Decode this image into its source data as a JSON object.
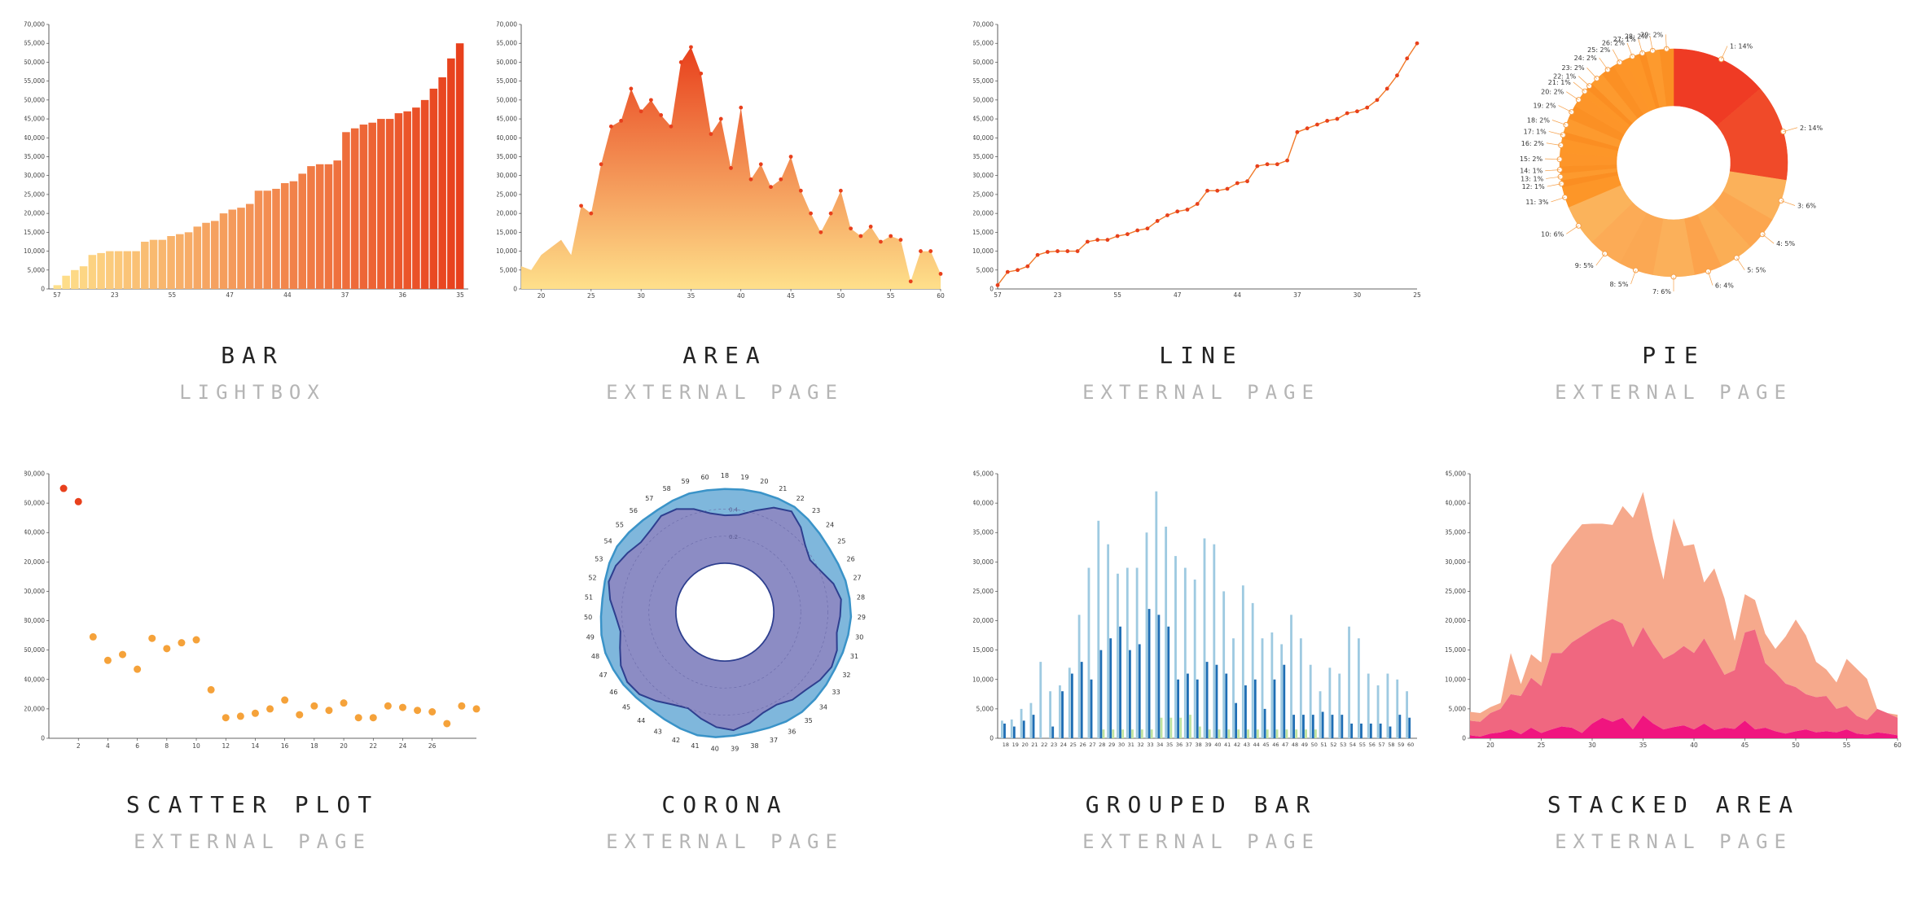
{
  "cards": [
    {
      "title": "BAR",
      "link": "LIGHTBOX"
    },
    {
      "title": "AREA",
      "link": "EXTERNAL PAGE"
    },
    {
      "title": "LINE",
      "link": "EXTERNAL PAGE"
    },
    {
      "title": "PIE",
      "link": "EXTERNAL PAGE"
    },
    {
      "title": "SCATTER PLOT",
      "link": "EXTERNAL PAGE"
    },
    {
      "title": "CORONA",
      "link": "EXTERNAL PAGE"
    },
    {
      "title": "GROUPED BAR",
      "link": "EXTERNAL PAGE"
    },
    {
      "title": "STACKED AREA",
      "link": "EXTERNAL PAGE"
    }
  ],
  "chart_data": [
    {
      "type": "bar",
      "ylim": [
        0,
        70000
      ],
      "yticks": [
        0,
        5000,
        10000,
        15000,
        20000,
        25000,
        30000,
        35000,
        40000,
        45000,
        50000,
        55000,
        60000,
        65000,
        70000
      ],
      "xtick_labels": [
        "57",
        "23",
        "55",
        "47",
        "44",
        "37",
        "36",
        "35"
      ],
      "values": [
        1000,
        3500,
        5000,
        6000,
        9000,
        9500,
        10000,
        10000,
        10000,
        10000,
        12500,
        13000,
        13000,
        14000,
        14500,
        15000,
        16500,
        17500,
        18000,
        20000,
        21000,
        21500,
        22500,
        26000,
        26000,
        26500,
        28000,
        28500,
        30500,
        32500,
        33000,
        33000,
        34000,
        41500,
        42500,
        43500,
        44000,
        45000,
        45000,
        46500,
        47000,
        48000,
        50000,
        53000,
        56000,
        61000,
        65000
      ],
      "colors": [
        "#fee08b",
        "#e8401c"
      ]
    },
    {
      "type": "area",
      "ylim": [
        0,
        70000
      ],
      "yticks": [
        0,
        5000,
        10000,
        15000,
        20000,
        25000,
        30000,
        35000,
        40000,
        45000,
        50000,
        55000,
        60000,
        65000,
        70000
      ],
      "xlim": [
        18,
        60
      ],
      "xticks": [
        20,
        25,
        30,
        35,
        40,
        45,
        50,
        55,
        60
      ],
      "x": [
        18,
        19,
        20,
        21,
        22,
        23,
        24,
        25,
        26,
        27,
        28,
        29,
        30,
        31,
        32,
        33,
        34,
        35,
        36,
        37,
        38,
        39,
        40,
        41,
        42,
        43,
        44,
        45,
        46,
        47,
        48,
        49,
        50,
        51,
        52,
        53,
        54,
        55,
        56,
        57,
        58,
        59,
        60
      ],
      "values": [
        6000,
        5000,
        9000,
        11000,
        13000,
        9000,
        22000,
        20000,
        33000,
        43000,
        44500,
        53000,
        47000,
        50000,
        46000,
        43000,
        60000,
        64000,
        57000,
        41000,
        45000,
        32000,
        48000,
        29000,
        33000,
        27000,
        29000,
        35000,
        26000,
        20000,
        15000,
        20000,
        26000,
        16000,
        14000,
        16500,
        12500,
        14000,
        13000,
        2000,
        10000,
        10000,
        4000
      ],
      "colors": [
        "#fee08b",
        "#e8401c"
      ]
    },
    {
      "type": "line",
      "ylim": [
        0,
        70000
      ],
      "yticks": [
        0,
        5000,
        10000,
        15000,
        20000,
        25000,
        30000,
        35000,
        40000,
        45000,
        50000,
        55000,
        60000,
        65000,
        70000
      ],
      "xtick_labels": [
        "57",
        "23",
        "55",
        "47",
        "44",
        "37",
        "30",
        "25"
      ],
      "values": [
        1000,
        4500,
        5000,
        6000,
        9000,
        9800,
        10000,
        10000,
        10000,
        12500,
        13000,
        13000,
        14000,
        14500,
        15500,
        16000,
        18000,
        19500,
        20500,
        21000,
        22500,
        26000,
        26000,
        26500,
        28000,
        28500,
        32500,
        33000,
        33000,
        34000,
        41500,
        42500,
        43500,
        44500,
        45000,
        46500,
        47000,
        48000,
        50000,
        53000,
        56500,
        61000,
        65000
      ],
      "color": "#e8401c"
    },
    {
      "type": "pie",
      "labels": [
        "1: 14%",
        "2: 14%",
        "3: 6%",
        "4: 5%",
        "5: 5%",
        "6: 4%",
        "7: 6%",
        "8: 5%",
        "9: 5%",
        "10: 6%",
        "11: 3%",
        "12: 1%",
        "13: 1%",
        "14: 1%",
        "15: 2%",
        "16: 2%",
        "17: 1%",
        "18: 2%",
        "19: 2%",
        "20: 2%",
        "21: 1%",
        "22: 1%",
        "23: 2%",
        "24: 2%",
        "25: 2%",
        "26: 2%",
        "27: 1%",
        "28: 2%",
        "29: 2%"
      ],
      "values": [
        14,
        14,
        6,
        5,
        5,
        4,
        6,
        5,
        5,
        6,
        3,
        1,
        1,
        1,
        2,
        2,
        1,
        2,
        2,
        2,
        1,
        1,
        2,
        2,
        2,
        2,
        1,
        2,
        2
      ]
    },
    {
      "type": "scatter",
      "ylim": [
        0,
        180000
      ],
      "yticks": [
        0,
        20000,
        40000,
        60000,
        80000,
        100000,
        120000,
        140000,
        160000,
        180000
      ],
      "yticks_labels": [
        "0",
        "20,000",
        "40,000",
        "60,000",
        "80,000",
        "100,000",
        "120,000",
        "140,000",
        "160,000",
        "180,000"
      ],
      "xlim": [
        0,
        29
      ],
      "xticks": [
        2,
        4,
        6,
        8,
        10,
        12,
        14,
        16,
        18,
        20,
        22,
        24,
        26
      ],
      "x": [
        1,
        2,
        3,
        4,
        5,
        6,
        7,
        8,
        9,
        10,
        11,
        12,
        13,
        14,
        15,
        16,
        17,
        18,
        19,
        20,
        21,
        22,
        23,
        24,
        25,
        26,
        27,
        28,
        29
      ],
      "values": [
        170000,
        161000,
        69000,
        53000,
        57000,
        47000,
        68000,
        61000,
        65000,
        67000,
        33000,
        14000,
        15000,
        17000,
        20000,
        26000,
        16000,
        22000,
        19000,
        24000,
        14000,
        14000,
        22000,
        21000,
        19000,
        18000,
        10000,
        22000,
        20000
      ]
    },
    {
      "type": "radar",
      "axis_labels": [
        "18",
        "19",
        "20",
        "21",
        "22",
        "23",
        "24",
        "25",
        "26",
        "27",
        "28",
        "29",
        "30",
        "31",
        "32",
        "33",
        "34",
        "35",
        "36",
        "37",
        "38",
        "39",
        "40",
        "41",
        "42",
        "43",
        "44",
        "45",
        "46",
        "47",
        "48",
        "49",
        "50",
        "51",
        "52",
        "53",
        "54",
        "55",
        "56",
        "57",
        "58",
        "59",
        "60"
      ],
      "ring_labels": [
        "0.4",
        "0.2"
      ],
      "series": [
        {
          "values": [
            0.62,
            0.64,
            0.74,
            0.86,
            0.93,
            0.84,
            0.72,
            0.66,
            0.72,
            0.82,
            0.88,
            0.86,
            0.84,
            0.9,
            0.92,
            0.88,
            0.82,
            0.8,
            0.74,
            0.76,
            0.84,
            0.9,
            0.86,
            0.78,
            0.7,
            0.74,
            0.82,
            0.9,
            0.92,
            0.88,
            0.8,
            0.74,
            0.78,
            0.86,
            0.92,
            0.9,
            0.84,
            0.78,
            0.8,
            0.86,
            0.84,
            0.76,
            0.66
          ]
        },
        {
          "values": [
            0.96,
            0.97,
            0.98,
            0.99,
            1.0,
            0.98,
            0.96,
            0.95,
            0.96,
            0.98,
            0.99,
            1.0,
            0.99,
            0.98,
            0.97,
            0.98,
            0.99,
            1.0,
            0.99,
            0.97,
            0.96,
            0.97,
            0.99,
            1.0,
            0.98,
            0.96,
            0.95,
            0.96,
            0.98,
            0.99,
            1.0,
            0.99,
            0.97,
            0.96,
            0.97,
            0.99,
            1.0,
            0.98,
            0.96,
            0.95,
            0.96,
            0.97,
            0.96
          ]
        }
      ]
    },
    {
      "type": "bar",
      "ylim": [
        0,
        45000
      ],
      "yticks": [
        0,
        5000,
        10000,
        15000,
        20000,
        25000,
        30000,
        35000,
        40000,
        45000
      ],
      "categories": [
        "18",
        "19",
        "20",
        "21",
        "22",
        "23",
        "24",
        "25",
        "26",
        "27",
        "28",
        "29",
        "30",
        "31",
        "32",
        "33",
        "34",
        "35",
        "36",
        "37",
        "38",
        "39",
        "40",
        "41",
        "42",
        "43",
        "44",
        "45",
        "46",
        "47",
        "48",
        "49",
        "50",
        "51",
        "52",
        "53",
        "54",
        "55",
        "56",
        "57",
        "58",
        "59",
        "60"
      ],
      "series": [
        {
          "values": [
            3000,
            3200,
            5000,
            6000,
            13000,
            8000,
            9000,
            12000,
            21000,
            29000,
            37000,
            33000,
            28000,
            29000,
            29000,
            35000,
            42000,
            36000,
            31000,
            29000,
            27000,
            34000,
            33000,
            25000,
            17000,
            26000,
            23000,
            17000,
            18000,
            16000,
            21000,
            17000,
            12500,
            8000,
            12000,
            11000,
            19000,
            17000,
            11000,
            9000,
            11000,
            10000,
            8000
          ],
          "color": "#9ecae1"
        },
        {
          "values": [
            2500,
            2000,
            3000,
            4000,
            0,
            2000,
            8000,
            11000,
            13000,
            10000,
            15000,
            17000,
            19000,
            15000,
            16000,
            22000,
            21000,
            19000,
            10000,
            11000,
            10000,
            13000,
            12500,
            11000,
            6000,
            9000,
            10000,
            5000,
            10000,
            12500,
            4000,
            4000,
            4000,
            4500,
            4000,
            4000,
            2500,
            2500,
            2500,
            2500,
            2000,
            4000,
            3500
          ],
          "color": "#1f6eb4"
        },
        {
          "values": [
            0,
            0,
            0,
            0,
            0,
            0,
            0,
            0,
            0,
            0,
            1500,
            1500,
            1500,
            1500,
            1500,
            1500,
            3500,
            3500,
            3500,
            4000,
            2000,
            1500,
            1500,
            1500,
            1500,
            1500,
            1500,
            1500,
            1500,
            1500,
            1500,
            1500,
            1500,
            0,
            0,
            0,
            0,
            0,
            0,
            0,
            0,
            0,
            0
          ],
          "color": "#bfe3a0"
        }
      ]
    },
    {
      "type": "area",
      "ylim": [
        0,
        45000
      ],
      "yticks": [
        0,
        5000,
        10000,
        15000,
        20000,
        25000,
        30000,
        35000,
        40000,
        45000
      ],
      "xlim": [
        18,
        60
      ],
      "xticks": [
        20,
        25,
        30,
        35,
        40,
        45,
        50,
        55,
        60
      ],
      "x": [
        18,
        19,
        20,
        21,
        22,
        23,
        24,
        25,
        26,
        27,
        28,
        29,
        30,
        31,
        32,
        33,
        34,
        35,
        36,
        37,
        38,
        39,
        40,
        41,
        42,
        43,
        44,
        45,
        46,
        47,
        48,
        49,
        50,
        51,
        52,
        53,
        54,
        55,
        56,
        57,
        58,
        59,
        60
      ],
      "series": [
        {
          "values": [
            500,
            300,
            800,
            1000,
            1500,
            700,
            1800,
            900,
            1500,
            2000,
            1800,
            900,
            2500,
            3500,
            2800,
            3500,
            1500,
            3900,
            2500,
            1500,
            1900,
            2200,
            1500,
            2500,
            1400,
            1800,
            1600,
            3000,
            1500,
            1800,
            1200,
            800,
            1200,
            1500,
            1000,
            1200,
            1000,
            1500,
            800,
            600,
            1000,
            800,
            500
          ],
          "color": "#f0157f"
        },
        {
          "values": [
            2500,
            2500,
            3500,
            4000,
            6000,
            6500,
            8500,
            8000,
            13000,
            12500,
            14500,
            16500,
            16000,
            16000,
            17500,
            16000,
            14000,
            15000,
            13500,
            12000,
            12500,
            13500,
            13000,
            14500,
            12500,
            9000,
            10000,
            15000,
            17000,
            11000,
            10000,
            8500,
            7500,
            6000,
            6000,
            6000,
            4000,
            4000,
            3000,
            2500,
            4000,
            3500,
            3000
          ],
          "color": "#f06780"
        },
        {
          "values": [
            1500,
            1500,
            1000,
            1000,
            7000,
            2000,
            4000,
            4000,
            15000,
            17500,
            18000,
            19000,
            18000,
            17000,
            16000,
            20000,
            22000,
            23000,
            18000,
            13500,
            23000,
            17000,
            18500,
            9500,
            15000,
            13000,
            5000,
            6500,
            5000,
            5000,
            4000,
            8000,
            11500,
            10000,
            6000,
            4500,
            4500,
            8000,
            8000,
            7000,
            0,
            0,
            500
          ],
          "color": "#f6a98c"
        }
      ]
    }
  ]
}
